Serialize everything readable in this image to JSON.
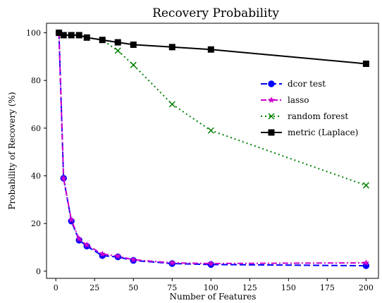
{
  "chart_data": {
    "type": "line",
    "title": "Recovery Probability",
    "xlabel": "Number of Features",
    "ylabel": "Probability of Recovery (%)",
    "xlim": [
      -6,
      208
    ],
    "ylim": [
      -3,
      104
    ],
    "xticks": [
      0,
      25,
      50,
      75,
      100,
      125,
      150,
      175,
      200
    ],
    "yticks": [
      0,
      20,
      40,
      60,
      80,
      100
    ],
    "grid": false,
    "legend_position": "right",
    "series": [
      {
        "name": "dcor test",
        "color": "#0000ff",
        "line_style": "dashed",
        "marker": "circle",
        "x": [
          2,
          5,
          10,
          15,
          20,
          30,
          40,
          50,
          75,
          100,
          200
        ],
        "y": [
          100,
          39,
          21,
          13,
          10.5,
          6.5,
          6,
          4.5,
          3.2,
          2.8,
          2.3
        ]
      },
      {
        "name": "lasso",
        "color": "#cc00cc",
        "line_style": "dashdot",
        "marker": "star",
        "x": [
          2,
          5,
          10,
          15,
          20,
          30,
          40,
          50,
          75,
          100,
          200
        ],
        "y": [
          100,
          39,
          21.5,
          13.5,
          11,
          7.2,
          6.3,
          4.8,
          3.5,
          3.2,
          3.5
        ]
      },
      {
        "name": "random forest",
        "color": "#007f00",
        "line_style": "dotted",
        "marker": "x",
        "x": [
          2,
          5,
          10,
          15,
          20,
          30,
          40,
          50,
          75,
          100,
          200
        ],
        "y": [
          100,
          99,
          99,
          99,
          98,
          97,
          92.5,
          86.5,
          70,
          59,
          36
        ]
      },
      {
        "name": "metric (Laplace)",
        "color": "#000000",
        "line_style": "solid",
        "marker": "square",
        "x": [
          2,
          5,
          10,
          15,
          20,
          30,
          40,
          50,
          75,
          100,
          200
        ],
        "y": [
          100,
          99,
          99,
          99,
          98,
          97,
          96,
          95,
          94,
          93,
          87
        ]
      }
    ]
  }
}
